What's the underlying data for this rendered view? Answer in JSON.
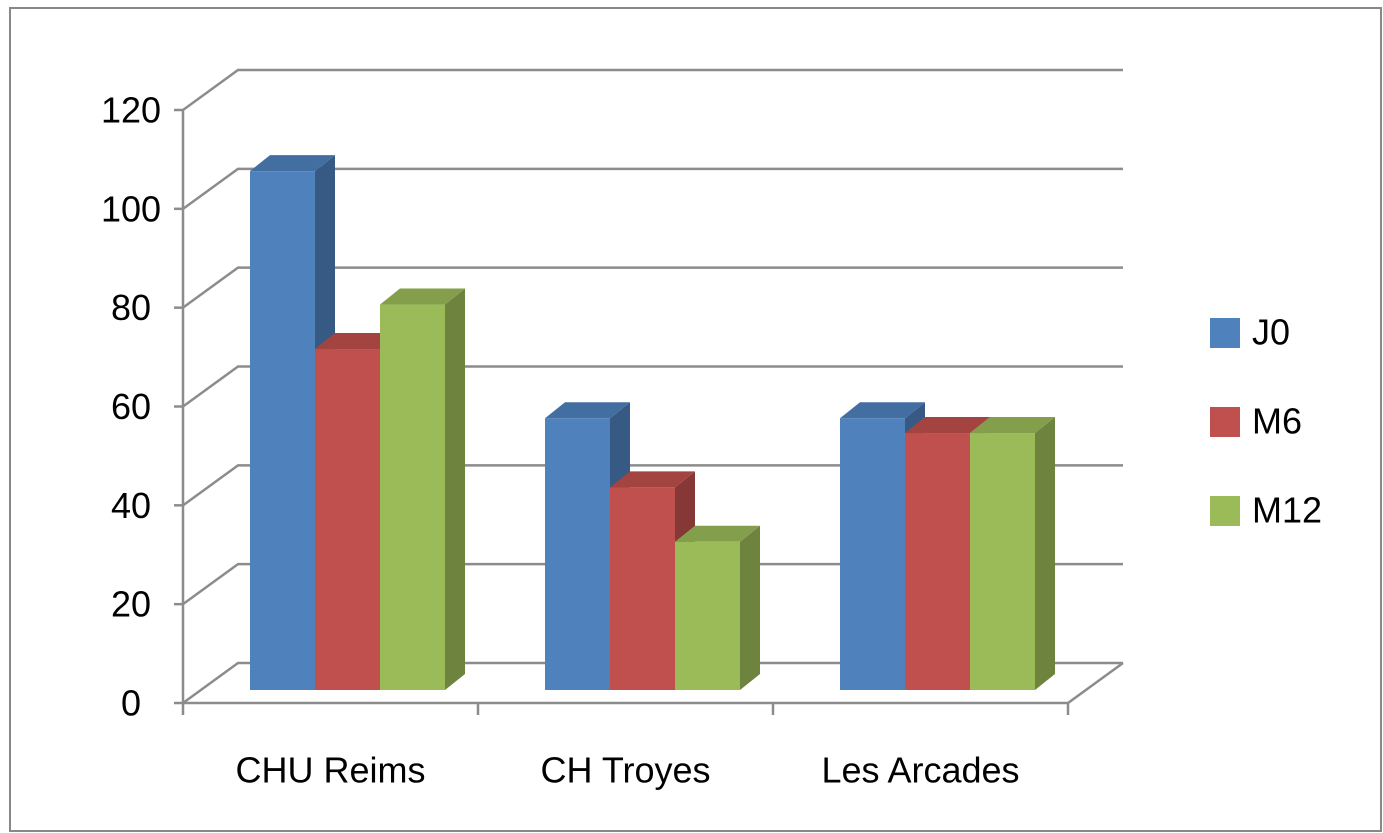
{
  "chart_data": {
    "type": "bar3d",
    "categories": [
      "CHU Reims",
      "CH Troyes",
      "Les Arcades"
    ],
    "series": [
      {
        "name": "J0",
        "color": "#4f81bd",
        "values": [
          105,
          55,
          55
        ]
      },
      {
        "name": "M6",
        "color": "#c0504d",
        "values": [
          69,
          41,
          52
        ]
      },
      {
        "name": "M12",
        "color": "#9bbb59",
        "values": [
          78,
          30,
          52
        ]
      }
    ],
    "ylim": [
      0,
      120
    ],
    "yticks": [
      0,
      20,
      40,
      60,
      80,
      100,
      120
    ],
    "grid": true,
    "legend": "right"
  }
}
